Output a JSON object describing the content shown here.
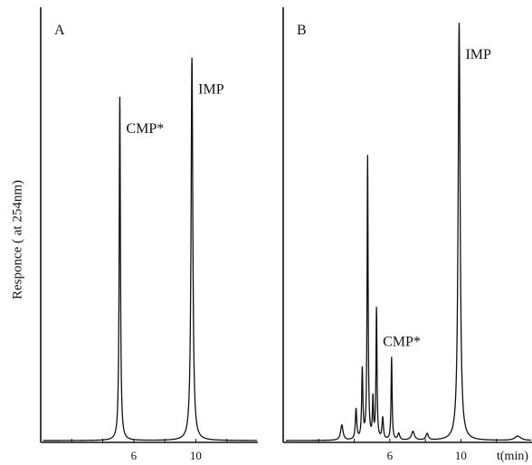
{
  "figure": {
    "ylabel": "Responce ( at 254nm)"
  },
  "chart_data": [
    {
      "type": "line",
      "panel_label": "A",
      "xlabel": "",
      "ylabel": "Responce ( at 254nm)",
      "x_ticks": [
        {
          "value": 6,
          "label": "6"
        },
        {
          "value": 10,
          "label": "10"
        }
      ],
      "xlim": [
        0,
        14
      ],
      "ylim": [
        0,
        1
      ],
      "grid": false,
      "peaks": [
        {
          "name": "CMP*",
          "rt": 5.1,
          "height": 0.79,
          "width": 0.07
        },
        {
          "name": "IMP",
          "rt": 9.75,
          "height": 0.88,
          "width": 0.1
        }
      ],
      "annotations": [
        {
          "text": "CMP*",
          "near_peak": "CMP*"
        },
        {
          "text": "IMP",
          "near_peak": "IMP"
        }
      ]
    },
    {
      "type": "line",
      "panel_label": "B",
      "xlabel": "t(min)",
      "ylabel": "",
      "x_ticks": [
        {
          "value": 6,
          "label": "6"
        },
        {
          "value": 10,
          "label": "10"
        }
      ],
      "xlim": [
        0,
        14
      ],
      "ylim": [
        0,
        1
      ],
      "grid": false,
      "peaks": [
        {
          "rt": 3.3,
          "height": 0.035,
          "width": 0.12
        },
        {
          "rt": 4.1,
          "height": 0.07,
          "width": 0.07
        },
        {
          "rt": 4.45,
          "height": 0.16,
          "width": 0.06
        },
        {
          "rt": 4.75,
          "height": 0.65,
          "width": 0.05
        },
        {
          "rt": 5.05,
          "height": 0.09,
          "width": 0.05
        },
        {
          "rt": 5.25,
          "height": 0.3,
          "width": 0.05
        },
        {
          "rt": 5.6,
          "height": 0.05,
          "width": 0.07
        },
        {
          "rt": 6.1,
          "height": 0.19,
          "width": 0.05
        },
        {
          "rt": 6.5,
          "height": 0.015,
          "width": 0.1
        },
        {
          "rt": 7.3,
          "height": 0.02,
          "width": 0.15
        },
        {
          "rt": 8.1,
          "height": 0.015,
          "width": 0.12
        },
        {
          "name": "IMP",
          "rt": 9.9,
          "height": 0.96,
          "width": 0.1
        },
        {
          "rt": 13.2,
          "height": 0.01,
          "width": 0.3
        }
      ],
      "annotations": [
        {
          "text": "CMP*",
          "near_peak_rt": 5.25
        },
        {
          "text": "IMP",
          "near_peak": "IMP"
        }
      ]
    }
  ]
}
